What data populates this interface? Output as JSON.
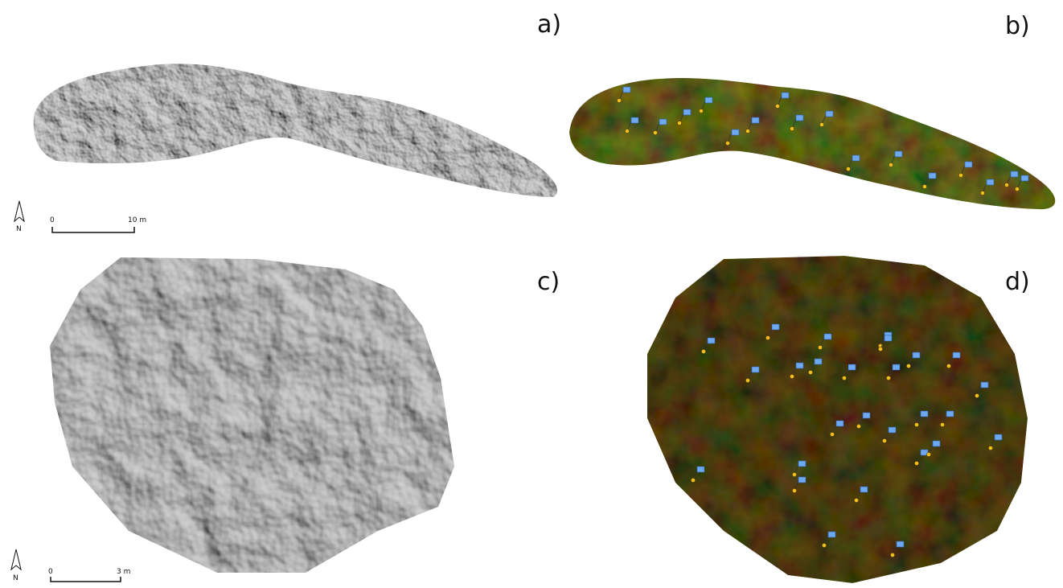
{
  "panels": [
    {
      "label": "a)"
    },
    {
      "label": "b)"
    },
    {
      "label": "c)"
    },
    {
      "label": "d)"
    }
  ],
  "scale_bars": [
    {
      "start": "0",
      "end": "10 m"
    },
    {
      "start": "0",
      "end": "3 m"
    }
  ],
  "north_label": "N"
}
